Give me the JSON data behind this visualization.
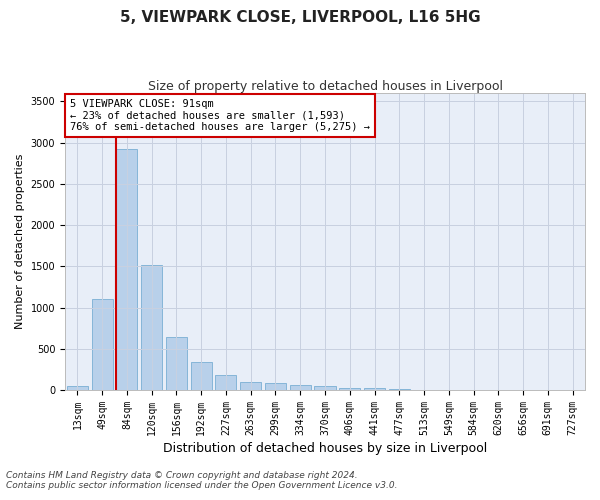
{
  "title": "5, VIEWPARK CLOSE, LIVERPOOL, L16 5HG",
  "subtitle": "Size of property relative to detached houses in Liverpool",
  "xlabel": "Distribution of detached houses by size in Liverpool",
  "ylabel": "Number of detached properties",
  "categories": [
    "13sqm",
    "49sqm",
    "84sqm",
    "120sqm",
    "156sqm",
    "192sqm",
    "227sqm",
    "263sqm",
    "299sqm",
    "334sqm",
    "370sqm",
    "406sqm",
    "441sqm",
    "477sqm",
    "513sqm",
    "549sqm",
    "584sqm",
    "620sqm",
    "656sqm",
    "691sqm",
    "727sqm"
  ],
  "values": [
    50,
    1100,
    2920,
    1510,
    640,
    340,
    185,
    95,
    80,
    60,
    55,
    30,
    20,
    10,
    5,
    5,
    5,
    2,
    1,
    1,
    0
  ],
  "bar_color": "#b8d0ea",
  "bar_edgecolor": "#7aafd4",
  "vline_x_index": 2,
  "vline_color": "#cc0000",
  "annotation_text": "5 VIEWPARK CLOSE: 91sqm\n← 23% of detached houses are smaller (1,593)\n76% of semi-detached houses are larger (5,275) →",
  "annotation_box_facecolor": "#ffffff",
  "annotation_box_edgecolor": "#cc0000",
  "ylim": [
    0,
    3600
  ],
  "yticks": [
    0,
    500,
    1000,
    1500,
    2000,
    2500,
    3000,
    3500
  ],
  "bg_color": "#ffffff",
  "plot_bg_color": "#e8eef8",
  "grid_color": "#c8d0e0",
  "footer_line1": "Contains HM Land Registry data © Crown copyright and database right 2024.",
  "footer_line2": "Contains public sector information licensed under the Open Government Licence v3.0.",
  "title_fontsize": 11,
  "subtitle_fontsize": 9,
  "xlabel_fontsize": 9,
  "ylabel_fontsize": 8,
  "tick_fontsize": 7,
  "annotation_fontsize": 7.5,
  "footer_fontsize": 6.5
}
